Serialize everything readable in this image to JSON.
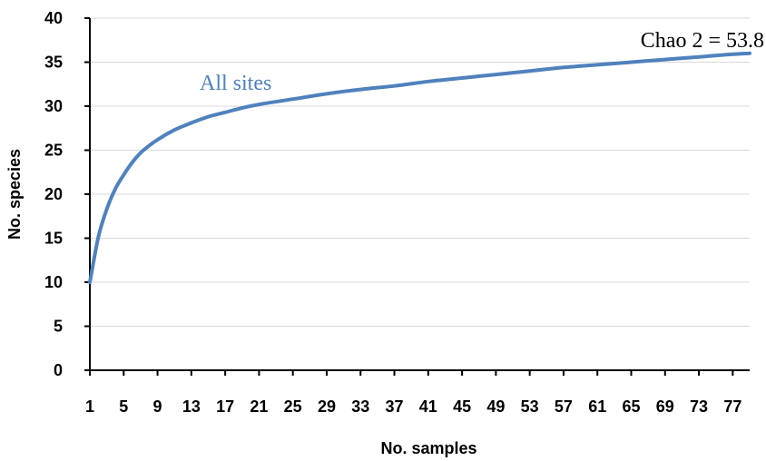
{
  "chart_data": {
    "type": "line",
    "xlabel": "No. samples",
    "ylabel": "No. species",
    "xlim": [
      1,
      79
    ],
    "ylim": [
      0,
      40
    ],
    "yticks": [
      0,
      5,
      10,
      15,
      20,
      25,
      30,
      35,
      40
    ],
    "xticks": [
      1,
      5,
      9,
      13,
      17,
      21,
      25,
      29,
      33,
      37,
      41,
      45,
      49,
      53,
      57,
      61,
      65,
      69,
      73,
      77
    ],
    "grid": true,
    "series": [
      {
        "name": "All sites",
        "color": "#4f81bd",
        "x": [
          1,
          2,
          3,
          4,
          5,
          6,
          7,
          8,
          9,
          11,
          13,
          15,
          17,
          19,
          21,
          25,
          29,
          33,
          37,
          41,
          45,
          49,
          53,
          57,
          61,
          65,
          69,
          73,
          77,
          79
        ],
        "y": [
          10,
          15.1,
          18.3,
          20.6,
          22.2,
          23.6,
          24.7,
          25.5,
          26.2,
          27.3,
          28.1,
          28.8,
          29.3,
          29.8,
          30.2,
          30.8,
          31.4,
          31.9,
          32.3,
          32.8,
          33.2,
          33.6,
          34.0,
          34.4,
          34.7,
          35.0,
          35.3,
          35.6,
          35.9,
          36.0
        ]
      }
    ],
    "annotations": [
      {
        "text": "All sites",
        "color": "#4f81bd"
      },
      {
        "text": "Chao 2 = 53.8",
        "color": "#000000"
      }
    ]
  }
}
